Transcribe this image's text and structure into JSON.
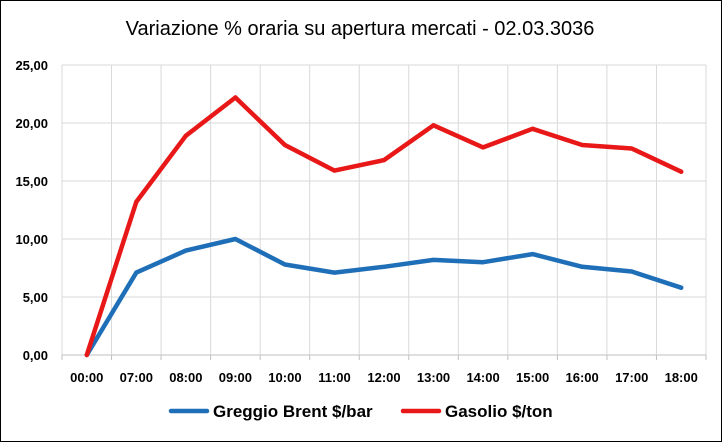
{
  "chart_data": {
    "type": "line",
    "title": "Variazione % oraria su apertura mercati - 02.03.3036",
    "categories": [
      "00:00",
      "07:00",
      "08:00",
      "09:00",
      "10:00",
      "11:00",
      "12:00",
      "13:00",
      "14:00",
      "15:00",
      "16:00",
      "17:00",
      "18:00"
    ],
    "ylim": [
      0,
      25
    ],
    "yticks": [
      0,
      5,
      10,
      15,
      20,
      25
    ],
    "ytick_labels": [
      "0,00",
      "5,00",
      "10,00",
      "15,00",
      "20,00",
      "25,00"
    ],
    "grid": true,
    "legend_position": "bottom",
    "series": [
      {
        "name": "Greggio Brent $/bar",
        "color": "#1f6fb8",
        "values": [
          0,
          7.1,
          9.0,
          10.0,
          7.8,
          7.1,
          7.6,
          8.2,
          8.0,
          8.7,
          7.6,
          7.2,
          5.8
        ]
      },
      {
        "name": "Gasolio $/ton",
        "color": "#e81818",
        "values": [
          0,
          13.2,
          18.9,
          22.2,
          18.1,
          15.9,
          16.8,
          19.8,
          17.9,
          19.5,
          18.1,
          17.8,
          15.8
        ]
      }
    ],
    "colors": {
      "grid": "#d9d9d9",
      "axis": "#bfbfbf"
    }
  }
}
